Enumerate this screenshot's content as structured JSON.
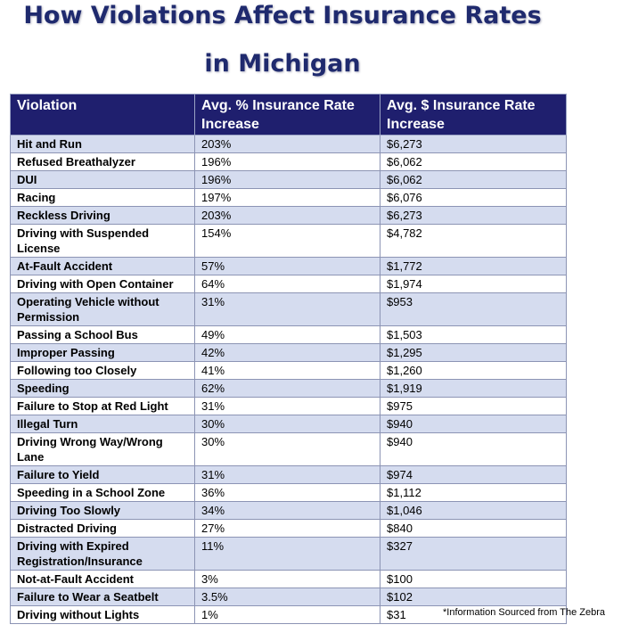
{
  "title": {
    "line1": "How Violations Affect Insurance Rates",
    "line2": "in Michigan"
  },
  "colors": {
    "title": "#1f2a6e",
    "header_bg": "#1f1f6e",
    "row_shaded": "#d5dcef",
    "row_plain": "#ffffff"
  },
  "table": {
    "headers": [
      "Violation",
      "Avg. % Insurance Rate Increase",
      "Avg. $ Insurance Rate Increase"
    ],
    "rows": [
      [
        "Hit and Run",
        "203%",
        "$6,273"
      ],
      [
        "Refused Breathalyzer",
        "196%",
        "$6,062"
      ],
      [
        "DUI",
        "196%",
        "$6,062"
      ],
      [
        "Racing",
        "197%",
        "$6,076"
      ],
      [
        "Reckless Driving",
        "203%",
        "$6,273"
      ],
      [
        "Driving with Suspended License",
        "154%",
        "$4,782"
      ],
      [
        "At-Fault Accident",
        "57%",
        "$1,772"
      ],
      [
        "Driving with Open Container",
        "64%",
        "$1,974"
      ],
      [
        "Operating Vehicle without Permission",
        "31%",
        "$953"
      ],
      [
        "Passing a School Bus",
        "49%",
        "$1,503"
      ],
      [
        "Improper Passing",
        "42%",
        "$1,295"
      ],
      [
        "Following too Closely",
        "41%",
        "$1,260"
      ],
      [
        "Speeding",
        "62%",
        "$1,919"
      ],
      [
        "Failure to Stop at Red Light",
        "31%",
        "$975"
      ],
      [
        "Illegal Turn",
        "30%",
        "$940"
      ],
      [
        "Driving Wrong Way/Wrong Lane",
        "30%",
        "$940"
      ],
      [
        "Failure to Yield",
        "31%",
        "$974"
      ],
      [
        "Speeding in a School Zone",
        "36%",
        "$1,112"
      ],
      [
        "Driving Too Slowly",
        "34%",
        "$1,046"
      ],
      [
        "Distracted Driving",
        "27%",
        "$840"
      ],
      [
        "Driving with Expired Registration/Insurance",
        "11%",
        "$327"
      ],
      [
        "Not-at-Fault Accident",
        "3%",
        "$100"
      ],
      [
        "Failure to Wear a Seatbelt",
        "3.5%",
        "$102"
      ],
      [
        "Driving without Lights",
        "1%",
        "$31"
      ]
    ]
  },
  "footnote": "*Information Sourced from The Zebra"
}
